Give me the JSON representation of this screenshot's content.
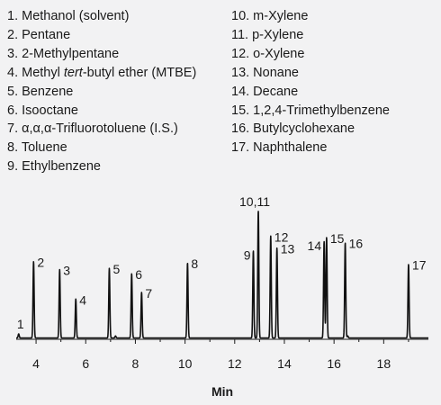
{
  "legend": {
    "column1": [
      {
        "pre": "1. Methanol (solvent)",
        "ital": "",
        "post": ""
      },
      {
        "pre": "2. Pentane",
        "ital": "",
        "post": ""
      },
      {
        "pre": "3. 2-Methylpentane",
        "ital": "",
        "post": ""
      },
      {
        "pre": "4. Methyl ",
        "ital": "tert",
        "post": "-butyl ether (MTBE)"
      },
      {
        "pre": "5. Benzene",
        "ital": "",
        "post": ""
      },
      {
        "pre": "6. Isooctane",
        "ital": "",
        "post": ""
      },
      {
        "pre": "7. α,α,α-Trifluorotoluene (I.S.)",
        "ital": "",
        "post": ""
      },
      {
        "pre": "8. Toluene",
        "ital": "",
        "post": ""
      },
      {
        "pre": "9. Ethylbenzene",
        "ital": "",
        "post": ""
      }
    ],
    "column2": [
      {
        "pre": "10. m-Xylene",
        "ital": "",
        "post": ""
      },
      {
        "pre": "11. p-Xylene",
        "ital": "",
        "post": ""
      },
      {
        "pre": "12. o-Xylene",
        "ital": "",
        "post": ""
      },
      {
        "pre": "13. Nonane",
        "ital": "",
        "post": ""
      },
      {
        "pre": "14. Decane",
        "ital": "",
        "post": ""
      },
      {
        "pre": "15. 1,2,4-Trimethylbenzene",
        "ital": "",
        "post": ""
      },
      {
        "pre": "16. Butylcyclohexane",
        "ital": "",
        "post": ""
      },
      {
        "pre": "17. Naphthalene",
        "ital": "",
        "post": ""
      }
    ]
  },
  "chart_data": {
    "type": "line",
    "title": "",
    "xlabel": "Min",
    "ylabel": "",
    "xlim": [
      3.2,
      19.8
    ],
    "ylim": [
      0,
      100
    ],
    "xticks": [
      4,
      6,
      8,
      10,
      12,
      14,
      16,
      18
    ],
    "grid": false,
    "baseline": 1,
    "line_color": "#111111",
    "peaks": [
      {
        "label": "1",
        "rt": 3.3,
        "height": 3
      },
      {
        "label": "2",
        "rt": 3.9,
        "height": 57
      },
      {
        "label": "3",
        "rt": 4.95,
        "height": 51
      },
      {
        "label": "4",
        "rt": 5.6,
        "height": 29
      },
      {
        "label": "5",
        "rt": 6.95,
        "height": 52
      },
      {
        "label": "6",
        "rt": 7.85,
        "height": 48
      },
      {
        "label": "7",
        "rt": 8.25,
        "height": 34
      },
      {
        "label": "8",
        "rt": 10.1,
        "height": 56
      },
      {
        "label": "9",
        "rt": 12.75,
        "height": 65
      },
      {
        "label": "10,11",
        "rt": 12.95,
        "height": 95
      },
      {
        "label": "12",
        "rt": 13.45,
        "height": 76
      },
      {
        "label": "13",
        "rt": 13.7,
        "height": 67
      },
      {
        "label": "14",
        "rt": 15.6,
        "height": 72
      },
      {
        "label": "15",
        "rt": 15.7,
        "height": 75
      },
      {
        "label": "16",
        "rt": 16.45,
        "height": 71
      },
      {
        "label": "17",
        "rt": 19.0,
        "height": 55
      }
    ],
    "minor_bumps": [
      {
        "rt": 7.2,
        "height": 1.5
      },
      {
        "rt": 16.55,
        "height": 1.5
      }
    ]
  }
}
